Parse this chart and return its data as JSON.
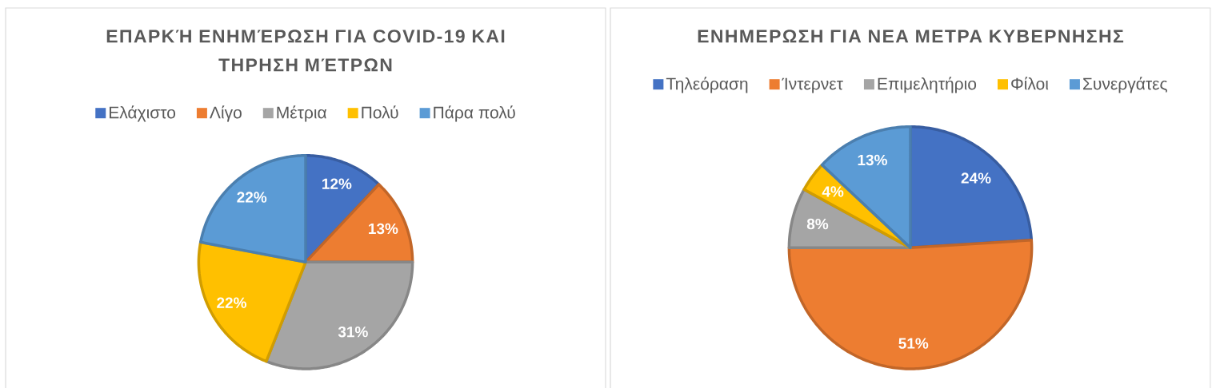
{
  "chart_data": [
    {
      "type": "pie",
      "title": "ΕΠΑΡΚΉ ΕΝΗΜΈΡΩΣΗ ΓΙΑ COVID-19 ΚΑΙ ΤΗΡΗΣΗ ΜΈΤΡΩΝ",
      "categories": [
        "Ελάχιστο",
        "Λίγο",
        "Μέτρια",
        "Πολύ",
        "Πάρα πολύ"
      ],
      "values": [
        12,
        13,
        31,
        22,
        22
      ],
      "colors": [
        "#4472c4",
        "#ed7d31",
        "#a5a5a5",
        "#ffc000",
        "#5b9bd5"
      ],
      "value_labels": [
        "12%",
        "13%",
        "31%",
        "22%",
        "22%"
      ],
      "legend": "top"
    },
    {
      "type": "pie",
      "title": "ΕΝΗΜΕΡΩΣΗ ΓΙΑ ΝΕΑ ΜΕΤΡΑ ΚΥΒΕΡΝΗΣΗΣ",
      "categories": [
        "Τηλεόραση",
        "Ίντερνετ",
        "Επιμελητήριο",
        "Φίλοι",
        "Συνεργάτες"
      ],
      "values": [
        24,
        51,
        8,
        4,
        13
      ],
      "colors": [
        "#4472c4",
        "#ed7d31",
        "#a5a5a5",
        "#ffc000",
        "#5b9bd5"
      ],
      "value_labels": [
        "24%",
        "51%",
        "8%",
        "4%",
        "13%"
      ],
      "legend": "top"
    }
  ]
}
